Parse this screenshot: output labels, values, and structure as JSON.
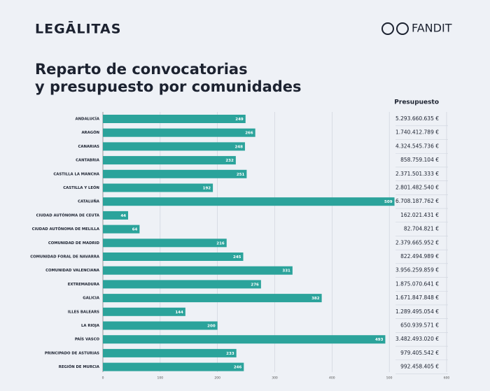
{
  "header": {
    "left_logo": "LEGĀLITAS",
    "right_logo": "FANDIT"
  },
  "chart_data": {
    "type": "bar",
    "orientation": "horizontal",
    "title": [
      "Reparto de convocatorias",
      "y presupuesto por comunidades"
    ],
    "categories": [
      "ANDALUCÍA",
      "ARAGÓN",
      "CANARIAS",
      "CANTABRIA",
      "CASTILLA LA MANCHA",
      "CASTILLA Y LEÓN",
      "CATALUÑA",
      "CIUDAD AUTÓNOMA DE CEUTA",
      "CIUDAD AUTÓNOMA DE MELILLA",
      "COMUNIDAD DE MADRID",
      "COMUNIDAD FORAL DE NAVARRA",
      "COMUNIDAD VALENCIANA",
      "EXTREMADURA",
      "GALICIA",
      "ILLES BALEARS",
      "LA RIOJA",
      "PAÍS VASCO",
      "PRINCIPADO DE ASTURIAS",
      "REGIÓN DE MURCIA"
    ],
    "values": [
      249,
      266,
      248,
      232,
      251,
      192,
      509,
      44,
      64,
      216,
      245,
      331,
      276,
      382,
      144,
      200,
      493,
      233,
      246
    ],
    "color": "#2ba39b",
    "xlim": [
      0,
      600
    ],
    "xticks": [
      0,
      100,
      200,
      300,
      400,
      500,
      600
    ],
    "grid": true,
    "budget_header": "Presupuesto",
    "budget": [
      "5.293.660.635 €",
      "1.740.412.789 €",
      "4.324.545.736 €",
      "858.759.104 €",
      "2.371.501.333 €",
      "2.801.482.540 €",
      "6.708.187.762 €",
      "162.021.431 €",
      "82.704.821 €",
      "2.379.665.952 €",
      "822.494.989 €",
      "3.956.259.859 €",
      "1.875.070.641 €",
      "1.671.847.848 €",
      "1.289.495.054 €",
      "650.939.571 €",
      "3.482.493.020 €",
      "979.405.542 €",
      "992.458.405 €"
    ]
  }
}
